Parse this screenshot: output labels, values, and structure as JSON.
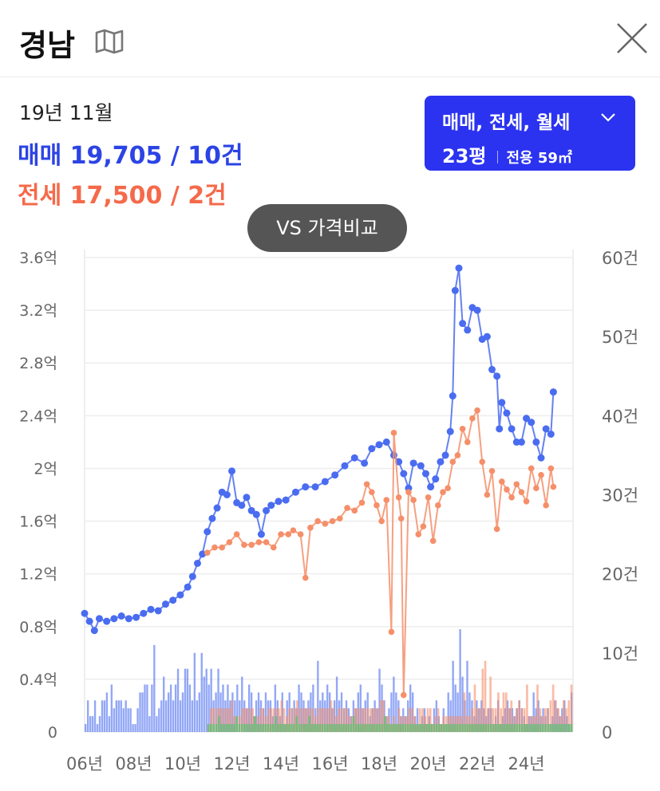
{
  "header": {
    "title": "경남",
    "map_icon": "map-icon",
    "close_icon": "close-icon"
  },
  "summary": {
    "date": "19년 11월",
    "sale_text": "매매 19,705 / 10건",
    "jeonse_text": "전세 17,500 / 2건"
  },
  "filter": {
    "types": "매매, 전세, 월세",
    "size": "23평",
    "area": "전용 59㎡"
  },
  "compare_button": "VS 가격비교",
  "colors": {
    "sale": "#4a6cf0",
    "jeonse": "#f58f6a",
    "monthly": "#5cc36a",
    "accent": "#2b33f0"
  },
  "chart_data": {
    "type": "line",
    "x_range": [
      2006.0,
      2025.9
    ],
    "x_ticks": [
      "06년",
      "08년",
      "10년",
      "12년",
      "14년",
      "16년",
      "18년",
      "20년",
      "22년",
      "24년"
    ],
    "y_left_ticks": [
      "0",
      "0.4억",
      "0.8억",
      "1.2억",
      "1.6억",
      "2억",
      "2.4억",
      "2.8억",
      "3.2억",
      "3.6억"
    ],
    "y_left_range": [
      0,
      3.6
    ],
    "y_right_ticks": [
      "0",
      "10건",
      "20건",
      "30건",
      "40건",
      "50건",
      "60건"
    ],
    "y_right_range": [
      0,
      60
    ],
    "series": [
      {
        "points": [
          [
            2006.0,
            0.9
          ],
          [
            2006.2,
            0.84
          ],
          [
            2006.4,
            0.77
          ],
          [
            2006.6,
            0.86
          ],
          [
            2006.9,
            0.84
          ],
          [
            2007.2,
            0.86
          ],
          [
            2007.5,
            0.88
          ],
          [
            2007.8,
            0.86
          ],
          [
            2008.1,
            0.87
          ],
          [
            2008.4,
            0.9
          ],
          [
            2008.7,
            0.93
          ],
          [
            2009.0,
            0.92
          ],
          [
            2009.3,
            0.97
          ],
          [
            2009.6,
            1.0
          ],
          [
            2009.9,
            1.04
          ],
          [
            2010.2,
            1.1
          ],
          [
            2010.4,
            1.18
          ],
          [
            2010.6,
            1.28
          ],
          [
            2010.8,
            1.35
          ],
          [
            2011.0,
            1.52
          ],
          [
            2011.2,
            1.62
          ],
          [
            2011.4,
            1.7
          ],
          [
            2011.6,
            1.82
          ],
          [
            2011.8,
            1.8
          ],
          [
            2012.0,
            1.98
          ],
          [
            2012.2,
            1.74
          ],
          [
            2012.4,
            1.72
          ],
          [
            2012.6,
            1.78
          ],
          [
            2012.8,
            1.68
          ],
          [
            2013.0,
            1.65
          ],
          [
            2013.2,
            1.5
          ],
          [
            2013.4,
            1.68
          ],
          [
            2013.6,
            1.72
          ],
          [
            2013.9,
            1.75
          ],
          [
            2014.2,
            1.76
          ],
          [
            2014.6,
            1.82
          ],
          [
            2015.0,
            1.86
          ],
          [
            2015.4,
            1.86
          ],
          [
            2015.8,
            1.9
          ],
          [
            2016.2,
            1.95
          ],
          [
            2016.6,
            2.02
          ],
          [
            2017.0,
            2.08
          ],
          [
            2017.4,
            2.04
          ],
          [
            2017.7,
            2.15
          ],
          [
            2018.0,
            2.18
          ],
          [
            2018.3,
            2.2
          ],
          [
            2018.6,
            2.1
          ],
          [
            2018.8,
            2.05
          ],
          [
            2019.0,
            1.96
          ],
          [
            2019.2,
            1.85
          ],
          [
            2019.4,
            2.04
          ],
          [
            2019.7,
            2.02
          ],
          [
            2019.9,
            1.96
          ],
          [
            2020.1,
            1.86
          ],
          [
            2020.3,
            1.92
          ],
          [
            2020.5,
            2.05
          ],
          [
            2020.7,
            2.1
          ],
          [
            2020.9,
            2.28
          ],
          [
            2021.0,
            2.55
          ],
          [
            2021.1,
            3.35
          ],
          [
            2021.25,
            3.52
          ],
          [
            2021.4,
            3.1
          ],
          [
            2021.6,
            3.05
          ],
          [
            2021.8,
            3.22
          ],
          [
            2022.0,
            3.2
          ],
          [
            2022.2,
            2.98
          ],
          [
            2022.4,
            3.0
          ],
          [
            2022.6,
            2.75
          ],
          [
            2022.8,
            2.7
          ],
          [
            2022.9,
            2.3
          ],
          [
            2023.0,
            2.5
          ],
          [
            2023.2,
            2.42
          ],
          [
            2023.4,
            2.3
          ],
          [
            2023.6,
            2.2
          ],
          [
            2023.8,
            2.2
          ],
          [
            2024.0,
            2.38
          ],
          [
            2024.2,
            2.35
          ],
          [
            2024.4,
            2.2
          ],
          [
            2024.6,
            2.08
          ],
          [
            2024.8,
            2.3
          ],
          [
            2025.0,
            2.26
          ],
          [
            2025.1,
            2.58
          ]
        ]
      },
      {
        "points": [
          [
            2011.0,
            1.36
          ],
          [
            2011.3,
            1.4
          ],
          [
            2011.6,
            1.4
          ],
          [
            2011.9,
            1.44
          ],
          [
            2012.2,
            1.5
          ],
          [
            2012.5,
            1.42
          ],
          [
            2012.8,
            1.42
          ],
          [
            2013.1,
            1.44
          ],
          [
            2013.4,
            1.44
          ],
          [
            2013.7,
            1.4
          ],
          [
            2014.0,
            1.5
          ],
          [
            2014.3,
            1.5
          ],
          [
            2014.5,
            1.53
          ],
          [
            2014.8,
            1.5
          ],
          [
            2015.0,
            1.17
          ],
          [
            2015.2,
            1.55
          ],
          [
            2015.5,
            1.6
          ],
          [
            2015.8,
            1.58
          ],
          [
            2016.1,
            1.6
          ],
          [
            2016.4,
            1.62
          ],
          [
            2016.7,
            1.7
          ],
          [
            2017.0,
            1.68
          ],
          [
            2017.3,
            1.74
          ],
          [
            2017.5,
            1.88
          ],
          [
            2017.7,
            1.82
          ],
          [
            2017.9,
            1.72
          ],
          [
            2018.1,
            1.6
          ],
          [
            2018.3,
            1.76
          ],
          [
            2018.5,
            0.76
          ],
          [
            2018.6,
            2.27
          ],
          [
            2018.8,
            1.78
          ],
          [
            2018.9,
            1.62
          ],
          [
            2019.0,
            0.28
          ],
          [
            2019.2,
            1.82
          ],
          [
            2019.4,
            1.76
          ],
          [
            2019.6,
            1.5
          ],
          [
            2019.8,
            1.56
          ],
          [
            2020.0,
            1.78
          ],
          [
            2020.2,
            1.45
          ],
          [
            2020.4,
            1.72
          ],
          [
            2020.6,
            1.82
          ],
          [
            2020.8,
            1.85
          ],
          [
            2021.0,
            2.05
          ],
          [
            2021.2,
            2.1
          ],
          [
            2021.4,
            2.3
          ],
          [
            2021.6,
            2.2
          ],
          [
            2021.8,
            2.38
          ],
          [
            2022.0,
            2.44
          ],
          [
            2022.2,
            2.05
          ],
          [
            2022.4,
            1.8
          ],
          [
            2022.6,
            1.98
          ],
          [
            2022.8,
            1.54
          ],
          [
            2023.0,
            1.9
          ],
          [
            2023.2,
            1.84
          ],
          [
            2023.4,
            1.78
          ],
          [
            2023.6,
            1.88
          ],
          [
            2023.8,
            1.82
          ],
          [
            2024.0,
            1.75
          ],
          [
            2024.2,
            2.0
          ],
          [
            2024.4,
            1.85
          ],
          [
            2024.6,
            1.95
          ],
          [
            2024.8,
            1.72
          ],
          [
            2025.0,
            2.0
          ],
          [
            2025.1,
            1.86
          ]
        ]
      }
    ],
    "volume": [
      {
        "counts": [
          1,
          4,
          2,
          2,
          4,
          1,
          2,
          4,
          4,
          5,
          2,
          6,
          3,
          4,
          4,
          4,
          3,
          4,
          3,
          3,
          1,
          1,
          3,
          5,
          5,
          6,
          6,
          2,
          6,
          11,
          2,
          3,
          4,
          7,
          4,
          5,
          6,
          4,
          6,
          8,
          4,
          5,
          8,
          8,
          6,
          4,
          10,
          4,
          5,
          10,
          7,
          8,
          6,
          8,
          4,
          5,
          8,
          5,
          6,
          4,
          6,
          4,
          5,
          4,
          6,
          4,
          7,
          4,
          3,
          6,
          5,
          2,
          4,
          5,
          4,
          3,
          5,
          4,
          4,
          2,
          6,
          4,
          2,
          5,
          1,
          4,
          5,
          3,
          4,
          3,
          6,
          5,
          4,
          3,
          4,
          5,
          6,
          3,
          9,
          4,
          5,
          4,
          6,
          5,
          3,
          4,
          7,
          4,
          5,
          3,
          4,
          3,
          2,
          4,
          3,
          5,
          6,
          3,
          4,
          5,
          2,
          3,
          4,
          3,
          8,
          6,
          4,
          2,
          3,
          5,
          7,
          5,
          4,
          2,
          3,
          2,
          4,
          6,
          5,
          2,
          3,
          1,
          2,
          3,
          1,
          2,
          1,
          3,
          4,
          2,
          1,
          3,
          1,
          5,
          4,
          9,
          6,
          5,
          13,
          7,
          4,
          9,
          5,
          4,
          2,
          4,
          3,
          4,
          3,
          2,
          3,
          3,
          1,
          2,
          4,
          1,
          2,
          3,
          4,
          3,
          3,
          2,
          3,
          4,
          3,
          2,
          1,
          2,
          2,
          5,
          3,
          4,
          2,
          3,
          2,
          3,
          1,
          2,
          4,
          3,
          2,
          3,
          4,
          2,
          1,
          5
        ]
      },
      {
        "counts": [
          1,
          3,
          3,
          3,
          3,
          3,
          3,
          3,
          3,
          4,
          2,
          2,
          2,
          3,
          3,
          3,
          3,
          3,
          2,
          2,
          3,
          3,
          2,
          3,
          3,
          3,
          3,
          3,
          4,
          3,
          2,
          3,
          3,
          3,
          4,
          3,
          3,
          3,
          3,
          3,
          3,
          2,
          3,
          3,
          3,
          3,
          3,
          4,
          3,
          2,
          3,
          3,
          3,
          3,
          2,
          2,
          3,
          3,
          3,
          3,
          3,
          3,
          3,
          3,
          3,
          3,
          4,
          4,
          2,
          2,
          1,
          2,
          1,
          3,
          2,
          2,
          2,
          3,
          3,
          2,
          1,
          3,
          3,
          2,
          3,
          3,
          1,
          2,
          3,
          1,
          2,
          2,
          2,
          2,
          2,
          2,
          2,
          2,
          5,
          2,
          2,
          3,
          6,
          3,
          3,
          8,
          9,
          3,
          7,
          3,
          3,
          5,
          3,
          5,
          5,
          3,
          4,
          2,
          3,
          4,
          3,
          3,
          6,
          2,
          2,
          2,
          6,
          3,
          2,
          3,
          3,
          4,
          6,
          4,
          3,
          2,
          4,
          3,
          4,
          6
        ]
      },
      {
        "counts": [
          1,
          1,
          1,
          1,
          2,
          1,
          1,
          1,
          1,
          1,
          1,
          2,
          1,
          1,
          1,
          1,
          1,
          1,
          2,
          1,
          1,
          1,
          1,
          1,
          1,
          1,
          2,
          1,
          1,
          1,
          1,
          1,
          1,
          1,
          2,
          1,
          1,
          1,
          1,
          2,
          1,
          1,
          1,
          1,
          1,
          1,
          1,
          1,
          1,
          1,
          1,
          1,
          1,
          1,
          1,
          1,
          2,
          1,
          1,
          1,
          1,
          1,
          1,
          1,
          1,
          1,
          1,
          1,
          2,
          1,
          1,
          1,
          1,
          1,
          1,
          1,
          1,
          1,
          1,
          1,
          1,
          1,
          1,
          1,
          1,
          1,
          1,
          1,
          1,
          1,
          1,
          1,
          1,
          1,
          1,
          1,
          1,
          1,
          1,
          1,
          1,
          1,
          1,
          1,
          1,
          1,
          1,
          1,
          1,
          1,
          1,
          1,
          1,
          1,
          1,
          1,
          1,
          1,
          1,
          1,
          1,
          1,
          1,
          1,
          1,
          1,
          1,
          1,
          1,
          1,
          1,
          1,
          1,
          1,
          1,
          1,
          1,
          1,
          1,
          1,
          1
        ]
      }
    ]
  }
}
